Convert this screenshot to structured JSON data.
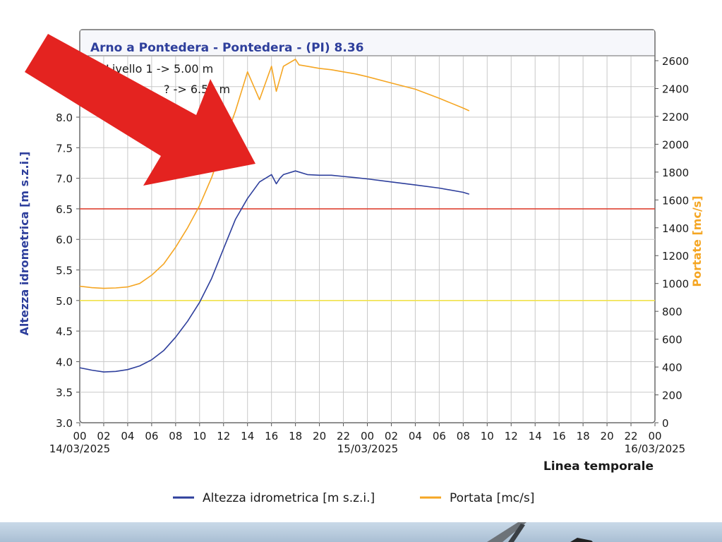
{
  "chart_data": {
    "type": "line",
    "title": "Arno a Pontedera - Pontedera -  (PI) 8.36",
    "thresholds": [
      {
        "label": "Livello 1 -> 5.00 m",
        "value": 5.0,
        "color": "#f0e24a"
      },
      {
        "label": "Livello 2 -> 6.50 m",
        "value": 6.5,
        "color": "#e04535"
      }
    ],
    "threshold_texts": [
      "Livello 1 -> 5.00 m",
      "? -> 6.50 m"
    ],
    "ylabel_left": "Altezza idrometrica [m s.z.i.]",
    "ylabel_right": "Portate [mc/s]",
    "xlabel": "Linea temporale",
    "ylim_left": [
      3.0,
      8.5
    ],
    "ylim_right": [
      0,
      2700
    ],
    "yticks_left": [
      "3.0",
      "3.5",
      "4.0",
      "4.5",
      "5.0",
      "5.5",
      "6.0",
      "6.5",
      "7.0",
      "7.5",
      "8.0"
    ],
    "yticks_right": [
      "0",
      "200",
      "400",
      "600",
      "800",
      "1000",
      "1200",
      "1400",
      "1600",
      "1800",
      "2000",
      "2200",
      "2400",
      "2600"
    ],
    "xticks": [
      "00",
      "02",
      "04",
      "06",
      "08",
      "10",
      "12",
      "14",
      "16",
      "18",
      "20",
      "22",
      "00",
      "02",
      "04",
      "06",
      "08",
      "10",
      "12",
      "14",
      "16",
      "18",
      "20",
      "22",
      "00"
    ],
    "xdates": [
      "14/03/2025",
      "15/03/2025",
      "16/03/2025"
    ],
    "series": [
      {
        "name": "Altezza idrometrica [m s.z.i.]",
        "axis": "left",
        "color": "#2e3f9c",
        "x": [
          0,
          1,
          2,
          3,
          4,
          5,
          6,
          7,
          8,
          9,
          10,
          11,
          12,
          13,
          14,
          15,
          16,
          16.4,
          16.7,
          17,
          18,
          19,
          20,
          21,
          22,
          23,
          24,
          26,
          28,
          30,
          32,
          32.5
        ],
        "values": [
          3.9,
          3.86,
          3.83,
          3.84,
          3.87,
          3.93,
          4.03,
          4.18,
          4.4,
          4.66,
          4.97,
          5.36,
          5.85,
          6.33,
          6.67,
          6.94,
          7.06,
          6.91,
          7.0,
          7.06,
          7.12,
          7.06,
          7.05,
          7.05,
          7.03,
          7.01,
          6.99,
          6.94,
          6.89,
          6.84,
          6.77,
          6.74
        ]
      },
      {
        "name": "Portata [mc/s]",
        "axis": "right",
        "color": "#f5a623",
        "x": [
          0,
          1,
          2,
          3,
          4,
          5,
          6,
          7,
          8,
          9,
          10,
          11,
          12,
          13,
          14,
          15,
          16,
          16.4,
          16.7,
          17,
          18,
          18.3,
          19,
          20,
          21,
          22,
          23,
          24,
          26,
          28,
          30,
          32,
          32.5
        ],
        "values": [
          980,
          970,
          965,
          968,
          975,
          1000,
          1060,
          1140,
          1260,
          1400,
          1560,
          1760,
          2000,
          2240,
          2520,
          2320,
          2560,
          2380,
          2470,
          2560,
          2610,
          2570,
          2560,
          2545,
          2535,
          2520,
          2505,
          2485,
          2440,
          2395,
          2330,
          2260,
          2240
        ]
      }
    ],
    "legend": "bottom",
    "grid": true
  },
  "overlay": {
    "arrow": "red-arrow"
  }
}
